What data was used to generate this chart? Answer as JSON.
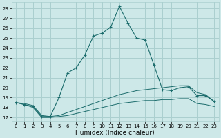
{
  "xlabel": "Humidex (Indice chaleur)",
  "background_color": "#cde8e8",
  "grid_color": "#aacfcf",
  "line_color": "#1a6b6b",
  "x_ticks": [
    0,
    1,
    2,
    3,
    4,
    5,
    6,
    7,
    8,
    9,
    10,
    11,
    12,
    13,
    14,
    15,
    16,
    17,
    18,
    19,
    20,
    21,
    22,
    23
  ],
  "y_ticks": [
    17,
    18,
    19,
    20,
    21,
    22,
    23,
    24,
    25,
    26,
    27,
    28
  ],
  "ylim": [
    16.6,
    28.6
  ],
  "xlim": [
    -0.5,
    23.5
  ],
  "series1_y": [
    18.5,
    18.3,
    18.1,
    17.1,
    17.1,
    19.0,
    21.5,
    22.0,
    23.3,
    25.2,
    25.5,
    26.1,
    28.2,
    26.5,
    25.0,
    24.8,
    22.3,
    19.8,
    19.7,
    20.0,
    20.1,
    19.2,
    19.2,
    18.6
  ],
  "series2_y": [
    18.5,
    18.4,
    18.2,
    17.2,
    17.1,
    17.2,
    17.5,
    17.8,
    18.1,
    18.4,
    18.7,
    19.0,
    19.3,
    19.5,
    19.7,
    19.8,
    19.9,
    20.0,
    20.1,
    20.2,
    20.2,
    19.5,
    19.3,
    18.6
  ],
  "series3_y": [
    18.5,
    18.3,
    18.0,
    17.0,
    17.0,
    17.1,
    17.2,
    17.4,
    17.6,
    17.8,
    18.0,
    18.2,
    18.4,
    18.5,
    18.6,
    18.7,
    18.7,
    18.8,
    18.8,
    18.9,
    18.9,
    18.4,
    18.3,
    18.1
  ],
  "xlabel_fontsize": 6.5,
  "tick_fontsize": 5.0
}
